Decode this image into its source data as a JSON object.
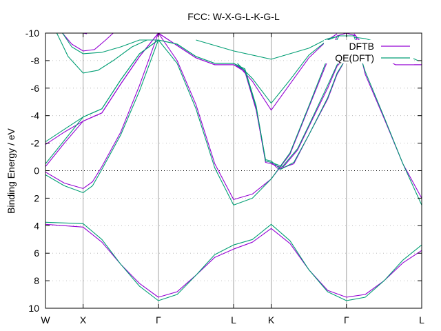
{
  "chart_data": {
    "type": "line",
    "title": "FCC: W-X-G-L-K-G-L",
    "xlabel": "",
    "ylabel": "Binding Energy / eV",
    "ylim": [
      10,
      -10
    ],
    "ytick_values": [
      -10,
      -8,
      -6,
      -4,
      -2,
      0,
      2,
      4,
      6,
      8,
      10
    ],
    "ytick_labels": [
      "-10",
      "-8",
      "-6",
      "-4",
      "-2",
      "0",
      "2",
      "4",
      "6",
      "8",
      "10"
    ],
    "xlim": [
      0,
      10
    ],
    "x_ticks": [
      {
        "x": 0,
        "label": "W"
      },
      {
        "x": 1,
        "label": "X"
      },
      {
        "x": 3,
        "label": "Γ"
      },
      {
        "x": 5,
        "label": "L"
      },
      {
        "x": 6,
        "label": "K"
      },
      {
        "x": 8,
        "label": "Γ"
      },
      {
        "x": 10,
        "label": "L"
      }
    ],
    "grid": true,
    "zero_line": true,
    "legend_position": "top-right",
    "series": [
      {
        "name": "DFTB",
        "color": "#9400d3",
        "bands": [
          [
            [
              0,
              3.9
            ],
            [
              0.5,
              4.0
            ],
            [
              1,
              4.1
            ],
            [
              1.5,
              5.2
            ],
            [
              2,
              6.8
            ],
            [
              2.5,
              8.2
            ],
            [
              3,
              9.2
            ],
            [
              3.5,
              8.8
            ],
            [
              4,
              7.6
            ],
            [
              4.5,
              6.3
            ],
            [
              5,
              5.7
            ],
            [
              5.5,
              5.2
            ],
            [
              6,
              4.2
            ],
            [
              6.5,
              5.3
            ],
            [
              7,
              7.2
            ],
            [
              7.5,
              8.7
            ],
            [
              8,
              9.2
            ],
            [
              8.5,
              9.0
            ],
            [
              9,
              8.0
            ],
            [
              9.5,
              6.7
            ],
            [
              10,
              5.8
            ]
          ],
          [
            [
              0,
              0.1
            ],
            [
              0.5,
              0.9
            ],
            [
              1,
              1.3
            ],
            [
              1.25,
              0.8
            ],
            [
              1.5,
              -0.3
            ],
            [
              2,
              -2.8
            ],
            [
              2.5,
              -6.2
            ],
            [
              3,
              -10
            ],
            [
              3.5,
              -8.0
            ],
            [
              4,
              -4.8
            ],
            [
              4.5,
              -0.5
            ],
            [
              5,
              2.1
            ],
            [
              5.5,
              1.7
            ],
            [
              6,
              0.6
            ],
            [
              6.5,
              -1.2
            ],
            [
              7,
              -4.6
            ],
            [
              7.5,
              -8.0
            ],
            [
              7.75,
              -9.8
            ],
            [
              8,
              -10
            ],
            [
              8.25,
              -9.8
            ],
            [
              8.5,
              -7.0
            ],
            [
              9,
              -3.8
            ],
            [
              9.5,
              -0.5
            ],
            [
              10,
              2.0
            ]
          ],
          [
            [
              0,
              -0.3
            ],
            [
              0.5,
              -2.0
            ],
            [
              1,
              -3.6
            ],
            [
              1.5,
              -4.2
            ],
            [
              2,
              -6.3
            ],
            [
              2.5,
              -8.3
            ],
            [
              3,
              -10
            ],
            [
              3.5,
              -9.1
            ],
            [
              4,
              -8.2
            ],
            [
              4.5,
              -7.7
            ],
            [
              5,
              -7.7
            ],
            [
              5.3,
              -7.2
            ],
            [
              5.6,
              -4.4
            ],
            [
              5.85,
              -0.7
            ],
            [
              6,
              -0.6
            ],
            [
              6.2,
              -0.1
            ],
            [
              6.6,
              -0.5
            ],
            [
              7,
              -2.6
            ],
            [
              7.5,
              -5.2
            ],
            [
              7.75,
              -7.0
            ],
            [
              8,
              -8.2
            ]
          ],
          [
            [
              0,
              -1.9
            ],
            [
              0.5,
              -2.8
            ],
            [
              1,
              -3.6
            ],
            [
              1.5,
              -4.2
            ],
            [
              2,
              -6.3
            ],
            [
              2.5,
              -8.3
            ],
            [
              3,
              -10
            ],
            [
              3.5,
              -9.1
            ],
            [
              4,
              -8.2
            ],
            [
              4.5,
              -7.7
            ],
            [
              5,
              -7.7
            ],
            [
              5.3,
              -7.3
            ],
            [
              5.6,
              -4.5
            ],
            [
              5.85,
              -0.6
            ],
            [
              6,
              -0.5
            ],
            [
              6.3,
              -0.2
            ],
            [
              6.7,
              -1.5
            ],
            [
              7,
              -3.2
            ],
            [
              7.5,
              -6.0
            ],
            [
              7.75,
              -7.6
            ],
            [
              8,
              -8.3
            ]
          ],
          [
            [
              0.45,
              -10
            ],
            [
              0.7,
              -9.2
            ],
            [
              1,
              -8.7
            ],
            [
              1.3,
              -8.8
            ],
            [
              1.6,
              -9.5
            ],
            [
              1.8,
              -10
            ]
          ],
          [
            [
              1,
              -10
            ],
            [
              1.1,
              -9.95
            ]
          ],
          [
            [
              5.1,
              -7.7
            ],
            [
              5.5,
              -6.5
            ],
            [
              6,
              -4.4
            ],
            [
              6.5,
              -6.3
            ],
            [
              7,
              -8.2
            ],
            [
              7.5,
              -9.5
            ],
            [
              7.75,
              -9.95
            ]
          ],
          [
            [
              8.2,
              -9.95
            ],
            [
              8.4,
              -9.3
            ],
            [
              8.8,
              -8.5
            ],
            [
              9.3,
              -7.7
            ],
            [
              10,
              -7.7
            ]
          ],
          [
            [
              9.8,
              -7.7
            ],
            [
              10,
              -7.7
            ]
          ]
        ]
      },
      {
        "name": "QE(DFT)",
        "color": "#009e73",
        "bands": [
          [
            [
              0,
              3.75
            ],
            [
              0.5,
              3.8
            ],
            [
              1,
              3.85
            ],
            [
              1.5,
              5.0
            ],
            [
              2,
              6.8
            ],
            [
              2.5,
              8.4
            ],
            [
              3,
              9.45
            ],
            [
              3.5,
              9.0
            ],
            [
              4,
              7.6
            ],
            [
              4.5,
              6.1
            ],
            [
              5,
              5.4
            ],
            [
              5.5,
              5.0
            ],
            [
              6,
              3.9
            ],
            [
              6.5,
              5.1
            ],
            [
              7,
              7.2
            ],
            [
              7.5,
              8.8
            ],
            [
              8,
              9.45
            ],
            [
              8.5,
              9.2
            ],
            [
              9,
              8.0
            ],
            [
              9.5,
              6.5
            ],
            [
              10,
              5.4
            ]
          ],
          [
            [
              0,
              0.3
            ],
            [
              0.5,
              1.1
            ],
            [
              1,
              1.6
            ],
            [
              1.25,
              1.1
            ],
            [
              1.5,
              -0.1
            ],
            [
              2,
              -2.6
            ],
            [
              2.5,
              -5.8
            ],
            [
              3,
              -9.5
            ],
            [
              3.5,
              -7.8
            ],
            [
              4,
              -4.5
            ],
            [
              4.5,
              -0.2
            ],
            [
              5,
              2.5
            ],
            [
              5.5,
              2.0
            ],
            [
              6,
              0.6
            ],
            [
              6.5,
              -1.3
            ],
            [
              7,
              -4.7
            ],
            [
              7.5,
              -8.2
            ],
            [
              7.8,
              -9.8
            ],
            [
              8.2,
              -9.8
            ],
            [
              8.5,
              -7.2
            ],
            [
              9,
              -3.9
            ],
            [
              9.5,
              -0.5
            ],
            [
              10,
              2.5
            ]
          ],
          [
            [
              0,
              -0.5
            ],
            [
              0.5,
              -2.2
            ],
            [
              1,
              -3.9
            ],
            [
              1.5,
              -4.5
            ],
            [
              2,
              -6.6
            ],
            [
              2.5,
              -8.5
            ],
            [
              3,
              -9.5
            ],
            [
              3.5,
              -9.2
            ],
            [
              4,
              -8.3
            ],
            [
              4.5,
              -7.8
            ],
            [
              5,
              -7.8
            ],
            [
              5.3,
              -7.3
            ],
            [
              5.6,
              -4.6
            ],
            [
              5.85,
              -0.8
            ],
            [
              6,
              -0.7
            ],
            [
              6.25,
              -0.1
            ],
            [
              6.6,
              -0.6
            ],
            [
              7,
              -2.6
            ],
            [
              7.5,
              -5.3
            ],
            [
              7.75,
              -7.1
            ],
            [
              8,
              -8.2
            ]
          ],
          [
            [
              0,
              -2.1
            ],
            [
              0.5,
              -3.0
            ],
            [
              1,
              -3.9
            ],
            [
              1.5,
              -4.5
            ],
            [
              2,
              -6.6
            ],
            [
              2.5,
              -8.5
            ],
            [
              3,
              -9.5
            ],
            [
              3.5,
              -9.2
            ],
            [
              4,
              -8.3
            ],
            [
              4.5,
              -7.8
            ],
            [
              5,
              -7.8
            ],
            [
              5.3,
              -7.4
            ],
            [
              5.6,
              -4.7
            ],
            [
              5.85,
              -0.7
            ],
            [
              6,
              -0.6
            ],
            [
              6.3,
              -0.3
            ],
            [
              6.7,
              -1.6
            ],
            [
              7,
              -3.3
            ],
            [
              7.5,
              -6.2
            ],
            [
              7.75,
              -7.7
            ],
            [
              8,
              -8.4
            ]
          ],
          [
            [
              0.3,
              -10
            ],
            [
              0.6,
              -8.3
            ],
            [
              1,
              -7.1
            ],
            [
              1.4,
              -7.3
            ],
            [
              1.8,
              -8.0
            ],
            [
              2.3,
              -9.0
            ],
            [
              2.7,
              -9.5
            ],
            [
              3,
              -9.5
            ]
          ],
          [
            [
              0.45,
              -10
            ],
            [
              0.7,
              -9.0
            ],
            [
              1,
              -8.5
            ],
            [
              1.5,
              -8.6
            ],
            [
              2,
              -9.0
            ],
            [
              2.5,
              -9.5
            ],
            [
              3,
              -9.5
            ]
          ],
          [
            [
              5.1,
              -7.8
            ],
            [
              5.5,
              -6.7
            ],
            [
              6,
              -4.9
            ],
            [
              6.5,
              -6.6
            ],
            [
              7,
              -8.4
            ],
            [
              7.5,
              -9.5
            ],
            [
              7.8,
              -9.8
            ]
          ],
          [
            [
              4,
              -9.5
            ],
            [
              5,
              -8.7
            ],
            [
              6,
              -8.1
            ],
            [
              7,
              -8.9
            ],
            [
              7.5,
              -9.6
            ],
            [
              7.75,
              -9.75
            ]
          ],
          [
            [
              8.2,
              -9.7
            ],
            [
              8.5,
              -9.6
            ],
            [
              9,
              -9.2
            ],
            [
              9.5,
              -8.5
            ],
            [
              9.9,
              -8.0
            ]
          ]
        ]
      }
    ]
  }
}
